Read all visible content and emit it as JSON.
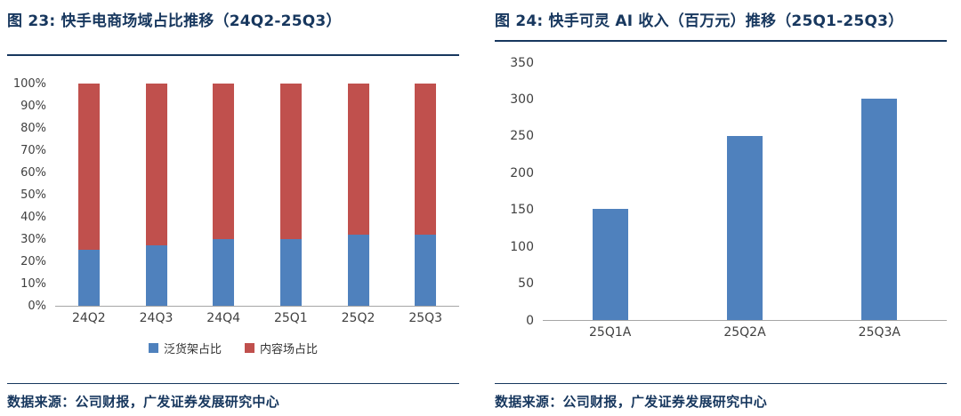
{
  "chart_data": [
    {
      "type": "bar",
      "subtype": "stacked-100-percent",
      "title": "图 23: 快手电商场域占比推移（24Q2-25Q3）",
      "categories": [
        "24Q2",
        "24Q3",
        "24Q4",
        "25Q1",
        "25Q2",
        "25Q3"
      ],
      "series": [
        {
          "name": "泛货架占比",
          "color": "#4F81BD",
          "values": [
            25,
            27,
            30,
            30,
            32,
            32
          ]
        },
        {
          "name": "内容场占比",
          "color": "#C0504D",
          "values": [
            75,
            73,
            70,
            70,
            68,
            68
          ]
        }
      ],
      "y_ticks": [
        "100%",
        "90%",
        "80%",
        "70%",
        "60%",
        "50%",
        "40%",
        "30%",
        "20%",
        "10%",
        "0%"
      ],
      "ylim": [
        0,
        100
      ],
      "legend_position": "bottom",
      "grid": false,
      "source": "数据来源：公司财报，广发证券发展研究中心"
    },
    {
      "type": "bar",
      "title": "图 24: 快手可灵 AI 收入（百万元）推移（25Q1-25Q3）",
      "categories": [
        "25Q1A",
        "25Q2A",
        "25Q3A"
      ],
      "values": [
        150,
        250,
        300
      ],
      "bar_color": "#4F81BD",
      "y_ticks": [
        "350",
        "300",
        "250",
        "200",
        "150",
        "100",
        "50",
        "0"
      ],
      "ylim": [
        0,
        350
      ],
      "legend_position": "none",
      "grid": false,
      "source": "数据来源：公司财报，广发证券发展研究中心"
    }
  ]
}
